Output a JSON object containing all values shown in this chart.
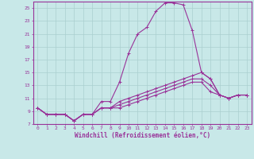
{
  "xlabel": "Windchill (Refroidissement éolien,°C)",
  "xlim": [
    -0.5,
    23.5
  ],
  "ylim": [
    7,
    26
  ],
  "xticks": [
    0,
    1,
    2,
    3,
    4,
    5,
    6,
    7,
    8,
    9,
    10,
    11,
    12,
    13,
    14,
    15,
    16,
    17,
    18,
    19,
    20,
    21,
    22,
    23
  ],
  "yticks": [
    7,
    9,
    11,
    13,
    15,
    17,
    19,
    21,
    23,
    25
  ],
  "ytick_labels": [
    "7",
    "9",
    "11",
    "13",
    "15",
    "17",
    "19",
    "21",
    "23",
    "25"
  ],
  "background_color": "#c8e8e8",
  "grid_color": "#aacfcf",
  "line_color": "#993399",
  "spine_color": "#993399",
  "lines": [
    {
      "x": [
        0,
        1,
        2,
        3,
        4,
        5,
        6,
        7,
        8,
        9,
        10,
        11,
        12,
        13,
        14,
        15,
        16,
        17,
        18,
        19,
        20,
        21,
        22,
        23
      ],
      "y": [
        9.5,
        8.5,
        8.5,
        8.5,
        7.5,
        8.5,
        8.5,
        10.5,
        10.5,
        13.5,
        18.0,
        21.0,
        22.0,
        24.5,
        25.8,
        25.8,
        25.5,
        21.5,
        15.0,
        14.0,
        11.5,
        11.0,
        11.5,
        11.5
      ]
    },
    {
      "x": [
        0,
        1,
        2,
        3,
        4,
        5,
        6,
        7,
        8,
        9,
        10,
        11,
        12,
        13,
        14,
        15,
        16,
        17,
        18,
        19,
        20,
        21,
        22,
        23
      ],
      "y": [
        9.5,
        8.5,
        8.5,
        8.5,
        7.5,
        8.5,
        8.5,
        9.5,
        9.5,
        10.5,
        11.0,
        11.5,
        12.0,
        12.5,
        13.0,
        13.5,
        14.0,
        14.5,
        15.0,
        14.0,
        11.5,
        11.0,
        11.5,
        11.5
      ]
    },
    {
      "x": [
        0,
        1,
        2,
        3,
        4,
        5,
        6,
        7,
        8,
        9,
        10,
        11,
        12,
        13,
        14,
        15,
        16,
        17,
        18,
        19,
        20,
        21,
        22,
        23
      ],
      "y": [
        9.5,
        8.5,
        8.5,
        8.5,
        7.5,
        8.5,
        8.5,
        9.5,
        9.5,
        10.0,
        10.5,
        11.0,
        11.5,
        12.0,
        12.5,
        13.0,
        13.5,
        14.0,
        14.0,
        13.0,
        11.5,
        11.0,
        11.5,
        11.5
      ]
    },
    {
      "x": [
        0,
        1,
        2,
        3,
        4,
        5,
        6,
        7,
        8,
        9,
        10,
        11,
        12,
        13,
        14,
        15,
        16,
        17,
        18,
        19,
        20,
        21,
        22,
        23
      ],
      "y": [
        9.5,
        8.5,
        8.5,
        8.5,
        7.5,
        8.5,
        8.5,
        9.5,
        9.5,
        9.5,
        10.0,
        10.5,
        11.0,
        11.5,
        12.0,
        12.5,
        13.0,
        13.5,
        13.5,
        12.0,
        11.5,
        11.0,
        11.5,
        11.5
      ]
    }
  ]
}
